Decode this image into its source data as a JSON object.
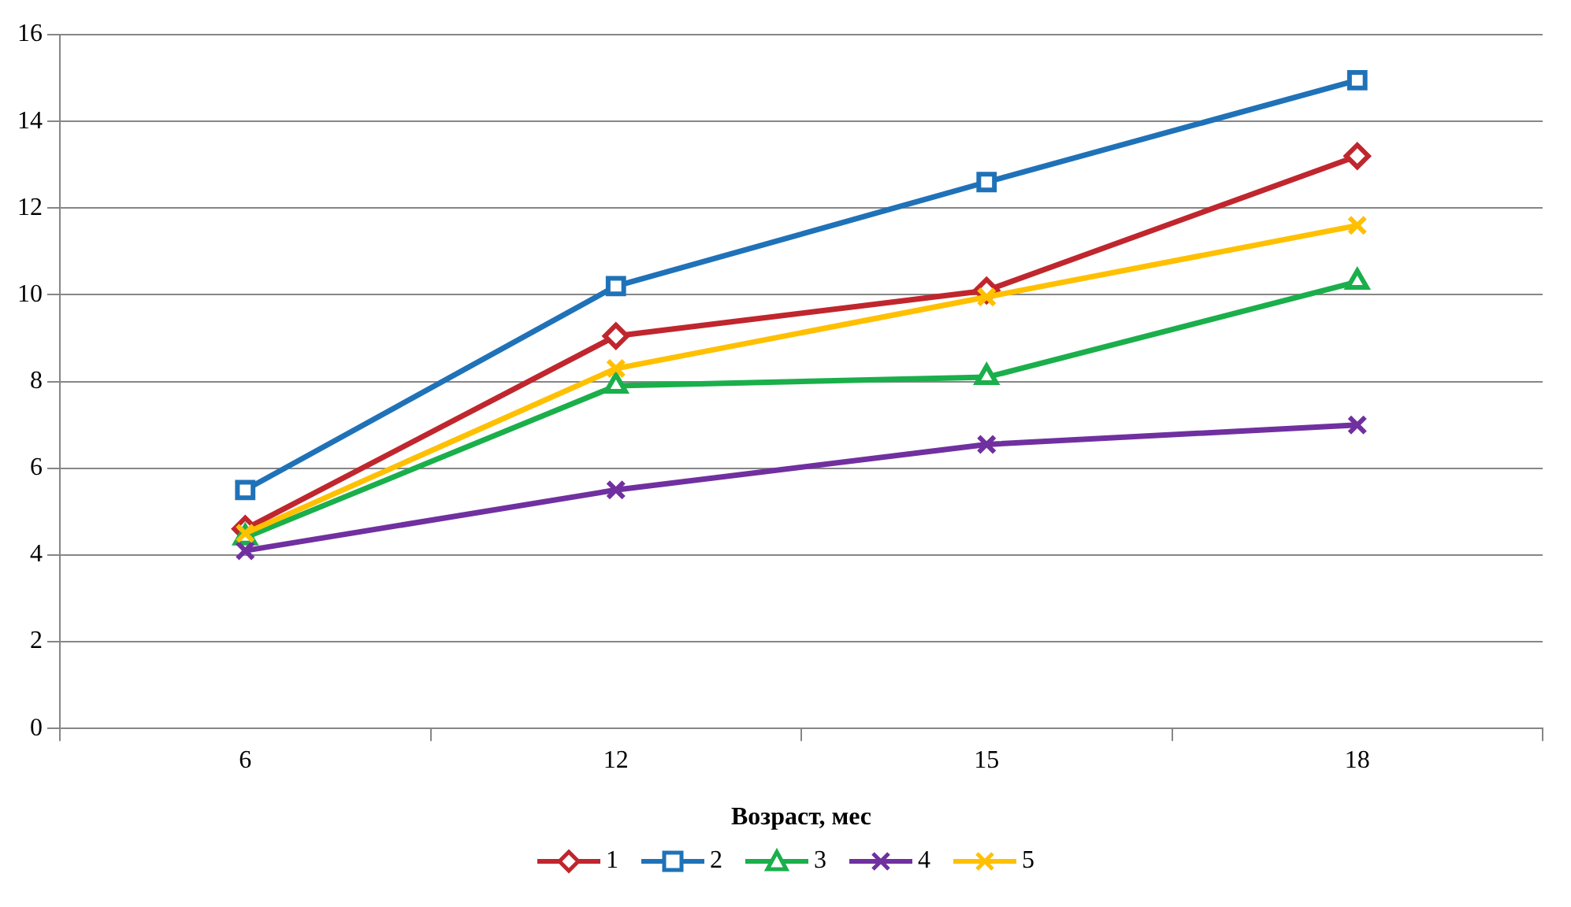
{
  "chart_data": {
    "type": "line",
    "xlabel": "Возраст, мес",
    "categories": [
      "6",
      "12",
      "15",
      "18"
    ],
    "ylim": [
      0,
      16
    ],
    "yticks": [
      0,
      2,
      4,
      6,
      8,
      10,
      12,
      14,
      16
    ],
    "grid": "y",
    "legend": "bottom",
    "series": [
      {
        "name": "1",
        "color": "#c0262d",
        "marker": "diamond",
        "values": [
          4.6,
          9.05,
          10.1,
          13.2
        ]
      },
      {
        "name": "2",
        "color": "#1f72b8",
        "marker": "square",
        "values": [
          5.5,
          10.2,
          12.6,
          14.95
        ]
      },
      {
        "name": "3",
        "color": "#1aaf4b",
        "marker": "triangle",
        "values": [
          4.4,
          7.9,
          8.1,
          10.3
        ]
      },
      {
        "name": "4",
        "color": "#7030a0",
        "marker": "cross",
        "values": [
          4.1,
          5.5,
          6.55,
          7.0
        ]
      },
      {
        "name": "5",
        "color": "#ffc000",
        "marker": "cross",
        "values": [
          4.5,
          8.3,
          9.95,
          11.6
        ]
      }
    ]
  }
}
